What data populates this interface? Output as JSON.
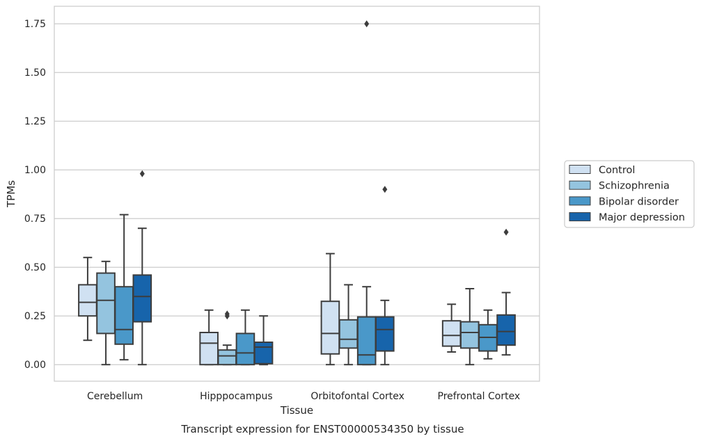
{
  "chart_data": {
    "type": "box",
    "caption": "Transcript expression for ENST00000534350 by tissue",
    "xlabel": "Tissue",
    "ylabel": "TPMs",
    "ylim": [
      -0.085,
      1.84
    ],
    "yticks": [
      "0.00",
      "0.25",
      "0.50",
      "0.75",
      "1.00",
      "1.25",
      "1.50",
      "1.75"
    ],
    "ytick_values": [
      0,
      0.25,
      0.5,
      0.75,
      1.0,
      1.25,
      1.5,
      1.75
    ],
    "grid": true,
    "legend_position": "right",
    "categories": [
      "Cerebellum",
      "Hipppocampus",
      "Orbitofontal Cortex",
      "Prefrontal Cortex"
    ],
    "series": [
      {
        "name": "Control",
        "color": "#d0e1f2",
        "boxes": [
          {
            "whislo": 0.125,
            "q1": 0.25,
            "med": 0.32,
            "q3": 0.41,
            "whishi": 0.55,
            "fliers": []
          },
          {
            "whislo": 0.0,
            "q1": 0.0,
            "med": 0.11,
            "q3": 0.165,
            "whishi": 0.28,
            "fliers": []
          },
          {
            "whislo": 0.0,
            "q1": 0.055,
            "med": 0.16,
            "q3": 0.325,
            "whishi": 0.57,
            "fliers": []
          },
          {
            "whislo": 0.065,
            "q1": 0.095,
            "med": 0.15,
            "q3": 0.225,
            "whishi": 0.31,
            "fliers": []
          }
        ]
      },
      {
        "name": "Schizophrenia",
        "color": "#94c4df",
        "boxes": [
          {
            "whislo": 0.0,
            "q1": 0.16,
            "med": 0.33,
            "q3": 0.47,
            "whishi": 0.53,
            "fliers": []
          },
          {
            "whislo": 0.0,
            "q1": 0.0,
            "med": 0.045,
            "q3": 0.075,
            "whishi": 0.1,
            "fliers": [
              0.25,
              0.26
            ]
          },
          {
            "whislo": 0.0,
            "q1": 0.085,
            "med": 0.13,
            "q3": 0.23,
            "whishi": 0.41,
            "fliers": []
          },
          {
            "whislo": 0.0,
            "q1": 0.085,
            "med": 0.165,
            "q3": 0.22,
            "whishi": 0.39,
            "fliers": []
          }
        ]
      },
      {
        "name": "Bipolar disorder",
        "color": "#4a98c9",
        "boxes": [
          {
            "whislo": 0.025,
            "q1": 0.105,
            "med": 0.18,
            "q3": 0.4,
            "whishi": 0.77,
            "fliers": []
          },
          {
            "whislo": 0.0,
            "q1": 0.0,
            "med": 0.06,
            "q3": 0.16,
            "whishi": 0.28,
            "fliers": []
          },
          {
            "whislo": 0.0,
            "q1": 0.0,
            "med": 0.05,
            "q3": 0.245,
            "whishi": 0.4,
            "fliers": [
              1.75
            ]
          },
          {
            "whislo": 0.03,
            "q1": 0.07,
            "med": 0.14,
            "q3": 0.205,
            "whishi": 0.28,
            "fliers": []
          }
        ]
      },
      {
        "name": "Major depression",
        "color": "#1764ab",
        "boxes": [
          {
            "whislo": 0.0,
            "q1": 0.22,
            "med": 0.35,
            "q3": 0.46,
            "whishi": 0.7,
            "fliers": [
              0.98
            ]
          },
          {
            "whislo": 0.0,
            "q1": 0.005,
            "med": 0.09,
            "q3": 0.115,
            "whishi": 0.25,
            "fliers": []
          },
          {
            "whislo": 0.0,
            "q1": 0.07,
            "med": 0.18,
            "q3": 0.245,
            "whishi": 0.33,
            "fliers": [
              0.9
            ]
          },
          {
            "whislo": 0.05,
            "q1": 0.1,
            "med": 0.17,
            "q3": 0.255,
            "whishi": 0.37,
            "fliers": [
              0.68
            ]
          }
        ]
      }
    ]
  }
}
